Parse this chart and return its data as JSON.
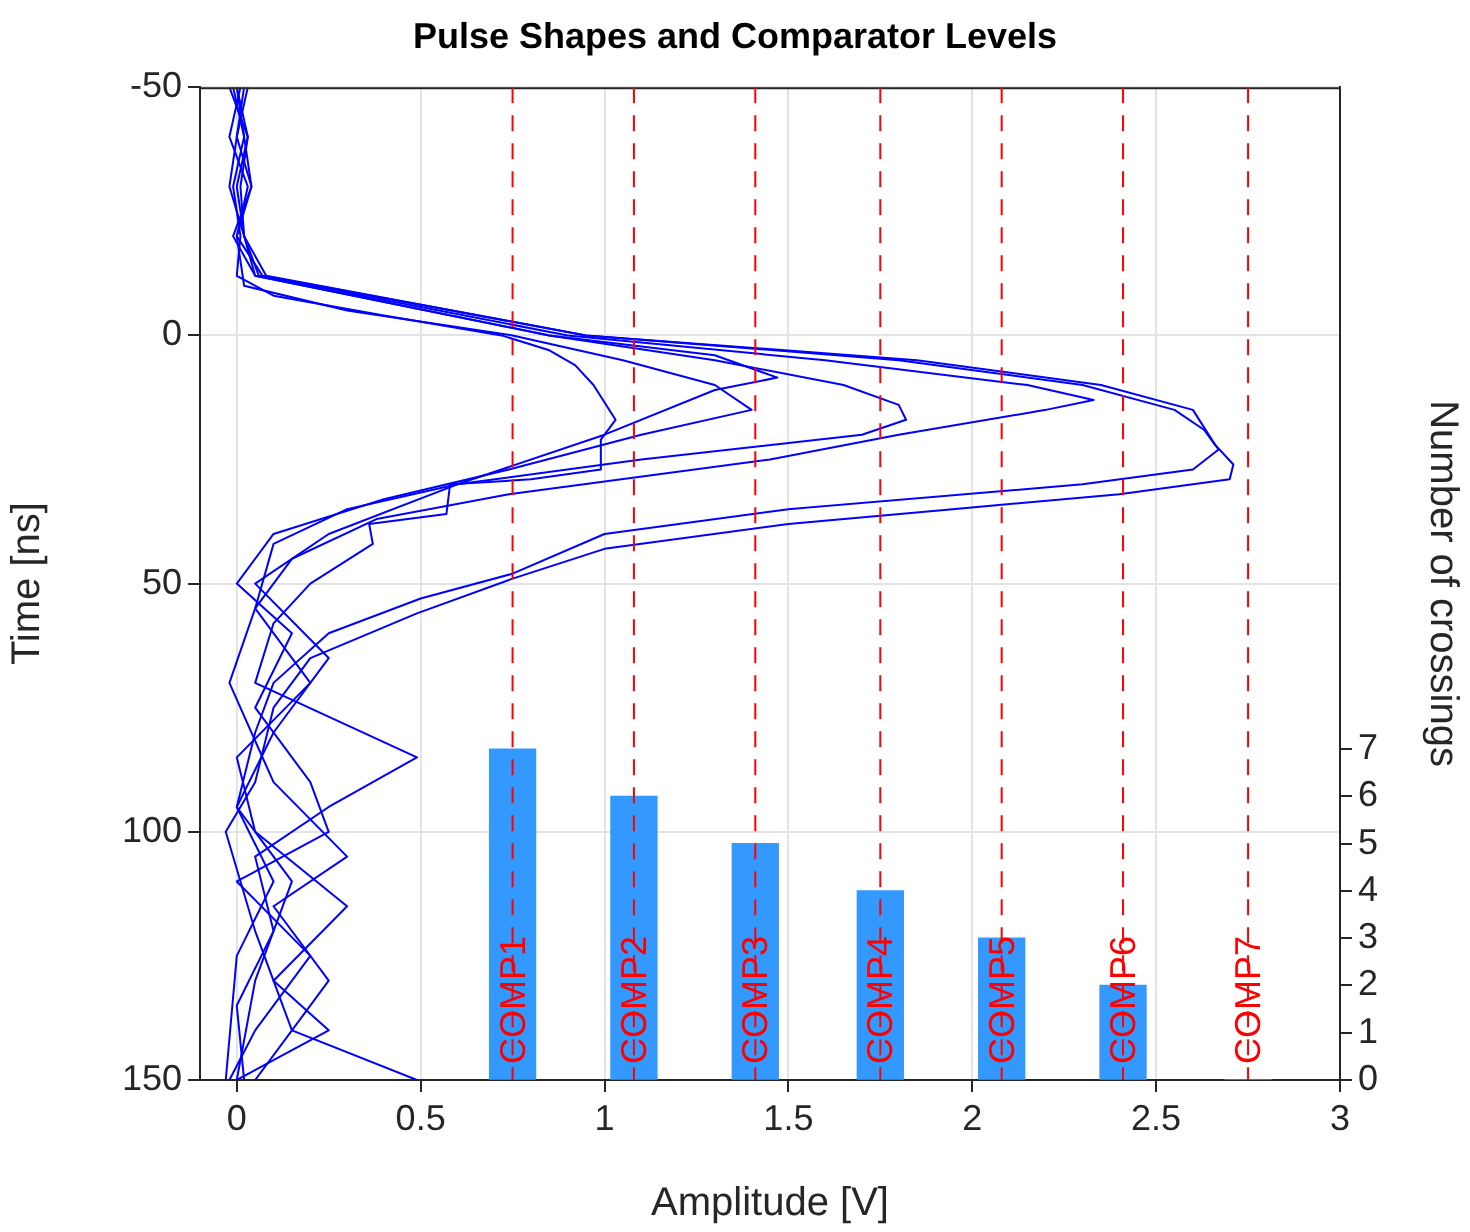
{
  "chart_data": {
    "type": "line",
    "title": "Pulse Shapes and Comparator Levels",
    "xlabel": "Amplitude [V]",
    "ylabel": "Time [ns]",
    "y2label": "Number of crossings",
    "xlim": [
      -0.1,
      3
    ],
    "xticks": [
      0,
      0.5,
      1,
      1.5,
      2,
      2.5,
      3
    ],
    "ylim": [
      150,
      -50
    ],
    "yticks": [
      -50,
      0,
      50,
      100,
      150
    ],
    "y2lim": [
      0,
      21
    ],
    "y2ticks": [
      0,
      1,
      2,
      3,
      4,
      5,
      6,
      7
    ],
    "grid": true,
    "marker": "none",
    "series": [
      {
        "color": "#0000ff",
        "x": [
          0.0,
          0.02,
          -0.01,
          0.01,
          0.0,
          0.1,
          0.4,
          0.72,
          0.85,
          0.92,
          0.97,
          1.03,
          0.99,
          0.99,
          0.8,
          0.58,
          0.57,
          0.36,
          0.37,
          0.2,
          0.1,
          0.05,
          0.49,
          0.25,
          0.05,
          0.1,
          0.0,
          0.02
        ],
        "values": [
          -50,
          -40,
          -30,
          -20,
          -12,
          -8,
          -4,
          0,
          3,
          6,
          10,
          17,
          21,
          27,
          29,
          30,
          36,
          38,
          42,
          50,
          58,
          70,
          85,
          95,
          105,
          120,
          135,
          150
        ]
      },
      {
        "color": "#0000ff",
        "x": [
          0.01,
          -0.02,
          0.03,
          0.0,
          0.02,
          0.3,
          0.75,
          1.05,
          1.3,
          1.4,
          1.1,
          0.74,
          0.4,
          0.1,
          0.0,
          0.15,
          0.05,
          0.2,
          0.25,
          0.0,
          0.2,
          0.05,
          -0.02
        ],
        "values": [
          -50,
          -40,
          -30,
          -20,
          -10,
          -5,
          0,
          5,
          10,
          15,
          20,
          27,
          33,
          40,
          50,
          60,
          75,
          90,
          100,
          110,
          125,
          140,
          150
        ]
      },
      {
        "color": "#0000ff",
        "x": [
          -0.02,
          0.03,
          0.0,
          0.02,
          0.05,
          0.85,
          1.3,
          1.47,
          1.3,
          1.0,
          0.6,
          0.25,
          0.05,
          0.25,
          0.1,
          0.0,
          0.15,
          0.05,
          0.0
        ],
        "values": [
          -50,
          -40,
          -30,
          -20,
          -12,
          0,
          4,
          8.5,
          11,
          20,
          30,
          40,
          50,
          65,
          80,
          95,
          110,
          130,
          150
        ]
      },
      {
        "color": "#0000ff",
        "x": [
          0.02,
          0.0,
          0.04,
          -0.01,
          0.05,
          0.85,
          1.3,
          1.65,
          1.8,
          1.82,
          1.7,
          1.1,
          0.6,
          0.3,
          0.1,
          0.05,
          -0.02,
          0.1,
          0.3,
          0.1,
          0.25,
          0.05
        ],
        "values": [
          -50,
          -40,
          -30,
          -20,
          -12,
          0,
          5,
          10,
          14,
          17,
          20,
          25,
          30,
          35,
          42,
          55,
          70,
          90,
          105,
          115,
          130,
          150
        ]
      },
      {
        "color": "#0000ff",
        "x": [
          0.0,
          0.03,
          0.01,
          0.02,
          0.06,
          0.9,
          1.6,
          2.15,
          2.33,
          2.2,
          1.8,
          1.45,
          0.74,
          0.38,
          0.15,
          0.05,
          0.2,
          0.0,
          0.05,
          0.3,
          0.1,
          0.25,
          0.0
        ],
        "values": [
          -50,
          -40,
          -30,
          -20,
          -12,
          0,
          5,
          10,
          13,
          15,
          20,
          25,
          32,
          37,
          45,
          55,
          70,
          85,
          100,
          115,
          130,
          140,
          150
        ]
      },
      {
        "color": "#0000ff",
        "x": [
          0.03,
          0.0,
          -0.02,
          0.02,
          0.08,
          0.95,
          1.8,
          2.3,
          2.55,
          2.63,
          2.67,
          2.6,
          2.3,
          1.5,
          1.0,
          0.75,
          0.5,
          0.25,
          0.1,
          0.05,
          0.0,
          0.1,
          0.0,
          -0.03
        ],
        "values": [
          -50,
          -40,
          -30,
          -20,
          -12,
          0,
          5,
          10,
          15,
          19,
          23,
          27,
          30,
          35,
          40,
          48,
          53,
          60,
          70,
          80,
          95,
          110,
          125,
          150
        ]
      },
      {
        "color": "#0000ff",
        "x": [
          -0.01,
          0.02,
          0.04,
          0.0,
          0.07,
          0.95,
          1.85,
          2.35,
          2.6,
          2.66,
          2.71,
          2.7,
          2.4,
          1.5,
          1.0,
          0.75,
          0.49,
          0.2,
          0.1,
          0.05,
          -0.03,
          0.05,
          0.15,
          0.49
        ],
        "values": [
          -50,
          -40,
          -30,
          -20,
          -12,
          0,
          5,
          10,
          15,
          22,
          26,
          29,
          32,
          38,
          43,
          49,
          56,
          65,
          75,
          90,
          100,
          120,
          140,
          150
        ]
      },
      {
        "type": "bar",
        "axis": "y2",
        "color": "#3399ff",
        "x": [
          0.75,
          1.08,
          1.41,
          1.75,
          2.08,
          2.41,
          2.75
        ],
        "values": [
          7,
          6,
          5,
          4,
          3,
          2,
          0
        ]
      }
    ],
    "ref_lines": [
      {
        "axis": "x",
        "value": 0.75,
        "label": "COMP1",
        "color": "#ff0000",
        "line_style": "dashed"
      },
      {
        "axis": "x",
        "value": 1.08,
        "label": "COMP2",
        "color": "#ff0000",
        "line_style": "dashed"
      },
      {
        "axis": "x",
        "value": 1.41,
        "label": "COMP3",
        "color": "#ff0000",
        "line_style": "dashed"
      },
      {
        "axis": "x",
        "value": 1.75,
        "label": "COMP4",
        "color": "#ff0000",
        "line_style": "dashed"
      },
      {
        "axis": "x",
        "value": 2.08,
        "label": "COMP5",
        "color": "#ff0000",
        "line_style": "dashed"
      },
      {
        "axis": "x",
        "value": 2.41,
        "label": "COMP6",
        "color": "#ff0000",
        "line_style": "dashed"
      },
      {
        "axis": "x",
        "value": 2.75,
        "label": "COMP7",
        "color": "#ff0000",
        "line_style": "dashed"
      }
    ]
  }
}
